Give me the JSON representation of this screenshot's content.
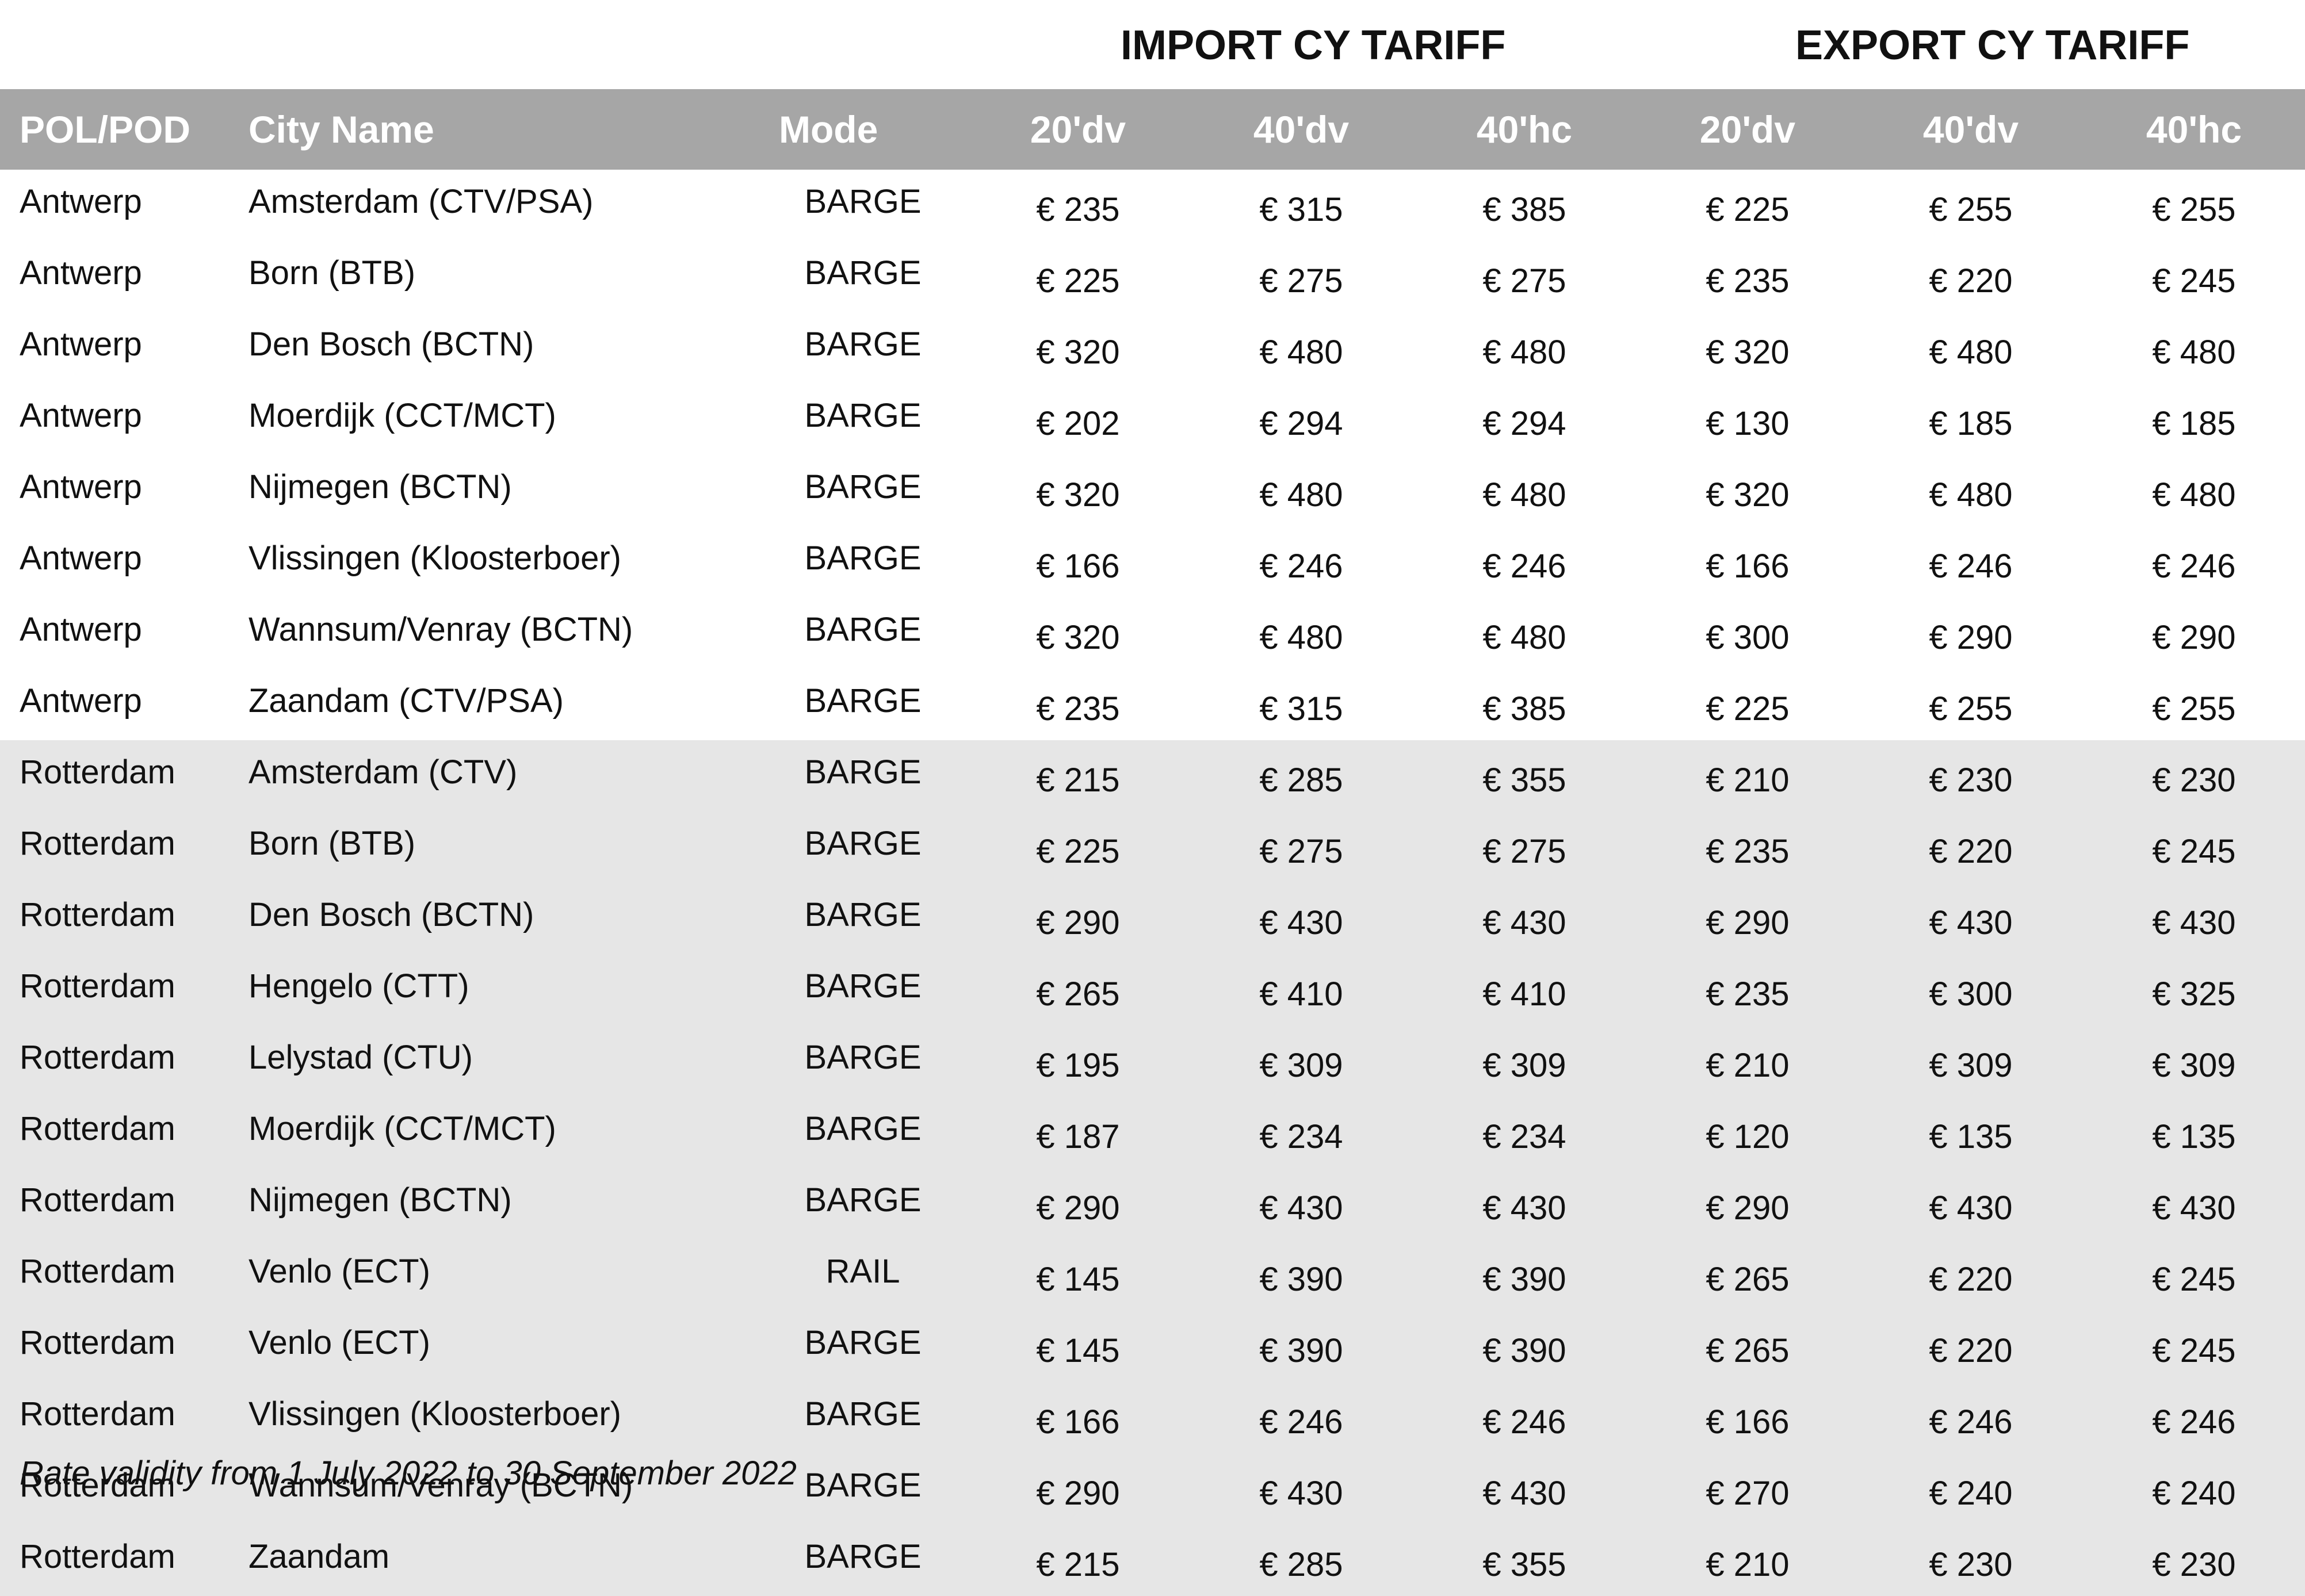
{
  "group_headers": {
    "import": "IMPORT CY TARIFF",
    "export": "EXPORT CY TARIFF"
  },
  "columns": [
    "POL/POD",
    "City Name",
    "Mode",
    "20'dv",
    "40'dv",
    "40'hc",
    "20'dv",
    "40'dv",
    "40'hc"
  ],
  "rows": [
    {
      "pol": "Antwerp",
      "city": "Amsterdam (CTV/PSA)",
      "mode": "BARGE",
      "rates": [
        "€ 235",
        "€ 315",
        "€ 385",
        "€ 225",
        "€ 255",
        "€ 255"
      ]
    },
    {
      "pol": "Antwerp",
      "city": "Born (BTB)",
      "mode": "BARGE",
      "rates": [
        "€ 225",
        "€ 275",
        "€ 275",
        "€ 235",
        "€ 220",
        "€ 245"
      ]
    },
    {
      "pol": "Antwerp",
      "city": "Den Bosch (BCTN)",
      "mode": "BARGE",
      "rates": [
        "€ 320",
        "€ 480",
        "€ 480",
        "€ 320",
        "€ 480",
        "€ 480"
      ]
    },
    {
      "pol": "Antwerp",
      "city": "Moerdijk (CCT/MCT)",
      "mode": "BARGE",
      "rates": [
        "€ 202",
        "€ 294",
        "€ 294",
        "€ 130",
        "€ 185",
        "€ 185"
      ]
    },
    {
      "pol": "Antwerp",
      "city": "Nijmegen (BCTN)",
      "mode": "BARGE",
      "rates": [
        "€ 320",
        "€ 480",
        "€ 480",
        "€ 320",
        "€ 480",
        "€ 480"
      ]
    },
    {
      "pol": "Antwerp",
      "city": "Vlissingen (Kloosterboer)",
      "mode": "BARGE",
      "rates": [
        "€ 166",
        "€ 246",
        "€ 246",
        "€ 166",
        "€ 246",
        "€ 246"
      ]
    },
    {
      "pol": "Antwerp",
      "city": "Wannsum/Venray (BCTN)",
      "mode": "BARGE",
      "rates": [
        "€ 320",
        "€ 480",
        "€ 480",
        "€ 300",
        "€ 290",
        "€ 290"
      ]
    },
    {
      "pol": "Antwerp",
      "city": "Zaandam (CTV/PSA)",
      "mode": "BARGE",
      "rates": [
        "€ 235",
        "€ 315",
        "€ 385",
        "€ 225",
        "€ 255",
        "€ 255"
      ]
    },
    {
      "pol": "Rotterdam",
      "city": "Amsterdam (CTV)",
      "mode": "BARGE",
      "rates": [
        "€ 215",
        "€ 285",
        "€ 355",
        "€ 210",
        "€ 230",
        "€ 230"
      ]
    },
    {
      "pol": "Rotterdam",
      "city": "Born (BTB)",
      "mode": "BARGE",
      "rates": [
        "€ 225",
        "€ 275",
        "€ 275",
        "€ 235",
        "€ 220",
        "€ 245"
      ]
    },
    {
      "pol": "Rotterdam",
      "city": "Den Bosch (BCTN)",
      "mode": "BARGE",
      "rates": [
        "€ 290",
        "€ 430",
        "€ 430",
        "€ 290",
        "€ 430",
        "€ 430"
      ]
    },
    {
      "pol": "Rotterdam",
      "city": "Hengelo (CTT)",
      "mode": "BARGE",
      "rates": [
        "€ 265",
        "€ 410",
        "€ 410",
        "€ 235",
        "€ 300",
        "€ 325"
      ]
    },
    {
      "pol": "Rotterdam",
      "city": "Lelystad (CTU)",
      "mode": "BARGE",
      "rates": [
        "€ 195",
        "€ 309",
        "€ 309",
        "€ 210",
        "€ 309",
        "€ 309"
      ]
    },
    {
      "pol": "Rotterdam",
      "city": "Moerdijk (CCT/MCT)",
      "mode": "BARGE",
      "rates": [
        "€ 187",
        "€ 234",
        "€ 234",
        "€ 120",
        "€ 135",
        "€ 135"
      ]
    },
    {
      "pol": "Rotterdam",
      "city": "Nijmegen (BCTN)",
      "mode": "BARGE",
      "rates": [
        "€ 290",
        "€ 430",
        "€ 430",
        "€ 290",
        "€ 430",
        "€ 430"
      ]
    },
    {
      "pol": "Rotterdam",
      "city": "Venlo (ECT)",
      "mode": "RAIL",
      "rates": [
        "€ 145",
        "€ 390",
        "€ 390",
        "€ 265",
        "€ 220",
        "€ 245"
      ]
    },
    {
      "pol": "Rotterdam",
      "city": "Venlo (ECT)",
      "mode": "BARGE",
      "rates": [
        "€ 145",
        "€ 390",
        "€ 390",
        "€ 265",
        "€ 220",
        "€ 245"
      ]
    },
    {
      "pol": "Rotterdam",
      "city": "Vlissingen (Kloosterboer)",
      "mode": "BARGE",
      "rates": [
        "€ 166",
        "€ 246",
        "€ 246",
        "€ 166",
        "€ 246",
        "€ 246"
      ]
    },
    {
      "pol": "Rotterdam",
      "city": "Wannsum/Venray (BCTN)",
      "mode": "BARGE",
      "rates": [
        "€ 290",
        "€ 430",
        "€ 430",
        "€ 270",
        "€ 240",
        "€ 240"
      ]
    },
    {
      "pol": "Rotterdam",
      "city": "Zaandam",
      "mode": "BARGE",
      "rates": [
        "€ 215",
        "€ 285",
        "€ 355",
        "€ 210",
        "€ 230",
        "€ 230"
      ]
    }
  ],
  "footnote": "Rate validity from 1 July 2022 to 30 September 2022",
  "colors": {
    "header_bg": "#a6a6a6",
    "header_text": "#ffffff",
    "rotterdam_row_bg": "#e6e6e6",
    "antwerp_row_bg": "#ffffff"
  }
}
